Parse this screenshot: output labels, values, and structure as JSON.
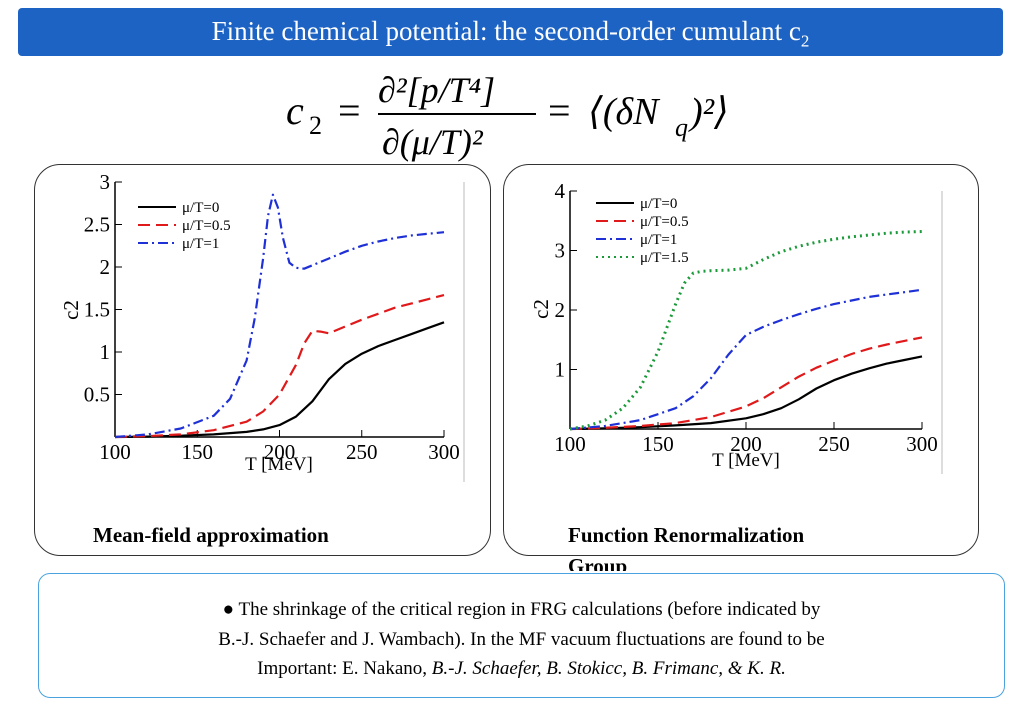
{
  "slide": {
    "title": "Finite chemical potential: the second-order cumulant c",
    "title_sub": "2",
    "formula": {
      "lhs": "c",
      "lhs_sub": "2",
      "equals": "=",
      "numerator": "∂²[p/T⁴]",
      "denominator": "∂(μ/T)²",
      "rhs": "⟨(δN",
      "rhs_sub": "q",
      "rhs_end": ")²⟩"
    },
    "captions": {
      "left": "Mean-field approximation",
      "right_line1": "Function Renormalization",
      "right_line2": "Group"
    },
    "note": {
      "line1": "● The shrinkage of the critical region in FRG calculations (before indicated  by",
      "line2": "B.-J. Schaefer and J. Wambach). In the MF vacuum fluctuations are found to be",
      "line3_plain": "Important:  E. Nakano, ",
      "line3_italic": "B.-J. Schaefer, B. Stokicc, B. Frimanc, & K. R."
    }
  },
  "chart_data": [
    {
      "type": "line",
      "xlabel": "T [MeV]",
      "ylabel": "c2",
      "xlim": [
        100,
        300
      ],
      "ylim": [
        0,
        3
      ],
      "xticks": [
        100,
        150,
        200,
        250,
        300
      ],
      "yticks": [
        0.5,
        1,
        1.5,
        2,
        2.5,
        3
      ],
      "ytick_labels": [
        "0.5",
        "1",
        "1.5",
        "2",
        "2.5",
        "3"
      ],
      "legend_position": "top-left",
      "series": [
        {
          "name": "μ/T=0",
          "color": "#000000",
          "style": "solid",
          "x": [
            100,
            120,
            140,
            160,
            180,
            190,
            200,
            210,
            220,
            230,
            240,
            250,
            260,
            270,
            280,
            290,
            300
          ],
          "y": [
            0,
            0.005,
            0.015,
            0.03,
            0.06,
            0.09,
            0.14,
            0.24,
            0.42,
            0.68,
            0.86,
            0.98,
            1.07,
            1.14,
            1.21,
            1.28,
            1.35
          ]
        },
        {
          "name": "μ/T=0.5",
          "color": "#e0191b",
          "style": "dashed",
          "x": [
            100,
            120,
            140,
            160,
            180,
            190,
            200,
            210,
            215,
            220,
            225,
            230,
            240,
            250,
            260,
            270,
            280,
            290,
            300
          ],
          "y": [
            0,
            0.01,
            0.03,
            0.08,
            0.18,
            0.3,
            0.5,
            0.85,
            1.1,
            1.25,
            1.24,
            1.22,
            1.3,
            1.38,
            1.45,
            1.52,
            1.57,
            1.62,
            1.67
          ]
        },
        {
          "name": "μ/T=1",
          "color": "#1f31d6",
          "style": "dashdot",
          "x": [
            100,
            120,
            140,
            160,
            170,
            180,
            185,
            190,
            193,
            196,
            199,
            202,
            206,
            210,
            215,
            220,
            230,
            240,
            250,
            260,
            270,
            280,
            290,
            300
          ],
          "y": [
            0,
            0.03,
            0.1,
            0.25,
            0.45,
            0.9,
            1.4,
            2.1,
            2.6,
            2.85,
            2.7,
            2.35,
            2.05,
            1.99,
            1.98,
            2.02,
            2.1,
            2.18,
            2.25,
            2.3,
            2.34,
            2.37,
            2.39,
            2.41
          ]
        }
      ]
    },
    {
      "type": "line",
      "xlabel": "T [MeV]",
      "ylabel": "c2",
      "xlim": [
        100,
        300
      ],
      "ylim": [
        0,
        4
      ],
      "xticks": [
        100,
        150,
        200,
        250,
        300
      ],
      "yticks": [
        1,
        2,
        3,
        4
      ],
      "ytick_labels": [
        "1",
        "2",
        "3",
        "4"
      ],
      "legend_position": "top-left",
      "series": [
        {
          "name": "μ/T=0",
          "color": "#000000",
          "style": "solid",
          "x": [
            100,
            120,
            140,
            160,
            180,
            200,
            210,
            220,
            230,
            240,
            250,
            260,
            270,
            280,
            290,
            300
          ],
          "y": [
            0,
            0.01,
            0.03,
            0.06,
            0.1,
            0.18,
            0.25,
            0.35,
            0.5,
            0.68,
            0.82,
            0.93,
            1.02,
            1.1,
            1.16,
            1.22
          ]
        },
        {
          "name": "μ/T=0.5",
          "color": "#e0191b",
          "style": "dashed",
          "x": [
            100,
            120,
            140,
            160,
            180,
            200,
            210,
            220,
            230,
            240,
            250,
            260,
            270,
            280,
            290,
            300
          ],
          "y": [
            0,
            0.02,
            0.05,
            0.1,
            0.2,
            0.38,
            0.52,
            0.7,
            0.88,
            1.03,
            1.15,
            1.26,
            1.35,
            1.42,
            1.48,
            1.54
          ]
        },
        {
          "name": "μ/T=1",
          "color": "#1f31d6",
          "style": "dashdot",
          "x": [
            100,
            120,
            140,
            160,
            170,
            180,
            190,
            200,
            210,
            220,
            230,
            240,
            250,
            260,
            270,
            280,
            290,
            300
          ],
          "y": [
            0,
            0.05,
            0.15,
            0.35,
            0.55,
            0.85,
            1.25,
            1.58,
            1.72,
            1.83,
            1.93,
            2.02,
            2.1,
            2.16,
            2.22,
            2.26,
            2.3,
            2.34
          ]
        },
        {
          "name": "μ/T=1.5",
          "color": "#1b9a3a",
          "style": "dotted",
          "x": [
            100,
            110,
            120,
            130,
            140,
            150,
            160,
            165,
            170,
            175,
            180,
            190,
            200,
            210,
            220,
            230,
            240,
            250,
            260,
            270,
            280,
            290,
            300
          ],
          "y": [
            0,
            0.05,
            0.15,
            0.35,
            0.7,
            1.3,
            2.1,
            2.45,
            2.62,
            2.65,
            2.66,
            2.67,
            2.7,
            2.85,
            2.98,
            3.07,
            3.14,
            3.19,
            3.23,
            3.26,
            3.29,
            3.31,
            3.32
          ]
        }
      ]
    }
  ]
}
